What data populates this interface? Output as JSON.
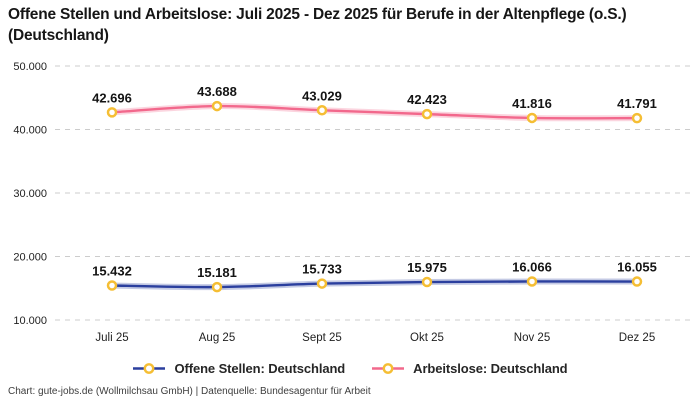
{
  "title": "Offene Stellen und Arbeitslose: Juli 2025 - Dez 2025 für Berufe in der Altenpflege (o.S.) (Deutschland)",
  "footer": "Chart: gute-jobs.de (Wollmilchsau GmbH) | Datenquelle: Bundesagentur für Arbeit",
  "colors": {
    "offene_stellen_line": "#2B3F9E",
    "arbeitslose_line": "#F2688C",
    "marker_ring": "#F5BE34",
    "marker_fill": "#FFFFFF",
    "gridline": "#CCCCCC",
    "axis_text": "#1F1F1F",
    "data_label_text": "#141414"
  },
  "chart_data": {
    "type": "line",
    "title": "Offene Stellen und Arbeitslose: Juli 2025 - Dez 2025 für Berufe in der Altenpflege (o.S.) (Deutschland)",
    "categories": [
      "Juli 25",
      "Aug 25",
      "Sept 25",
      "Okt 25",
      "Nov 25",
      "Dez 25"
    ],
    "series": [
      {
        "name": "Offene Stellen: Deutschland",
        "values": [
          15432,
          15181,
          15733,
          15975,
          16066,
          16055
        ],
        "color": "#2B3F9E"
      },
      {
        "name": "Arbeitslose: Deutschland",
        "values": [
          42696,
          43688,
          43029,
          42423,
          41816,
          41791
        ],
        "color": "#F2688C"
      }
    ],
    "xlabel": "",
    "ylabel": "",
    "ylim": [
      10000,
      50000
    ],
    "y_ticks": [
      50000,
      40000,
      30000,
      20000,
      10000
    ],
    "y_tick_labels": [
      "50.000",
      "40.000",
      "30.000",
      "20.000",
      "10.000"
    ],
    "grid": "horizontal-dashed",
    "legend_position": "bottom",
    "data_labels": true,
    "data_label_format": "thousands-dot",
    "source_note": "Chart: gute-jobs.de (Wollmilchsau GmbH) | Datenquelle: Bundesagentur für Arbeit"
  }
}
